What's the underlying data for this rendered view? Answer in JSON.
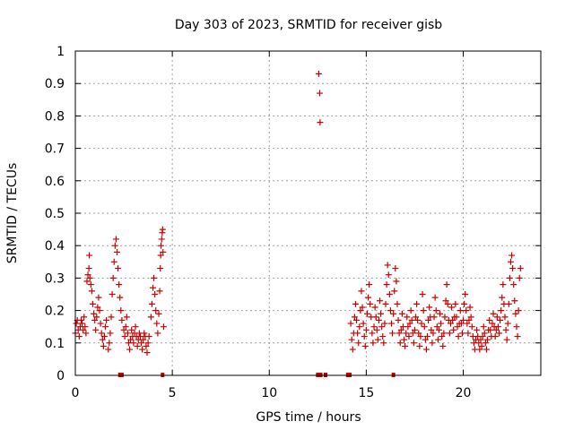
{
  "chart_data": {
    "type": "scatter",
    "title": "Day 303 of 2023, SRMTID for receiver gisb",
    "xlabel": "GPS time / hours",
    "ylabel": "SRMTID / TECUs",
    "xlim": [
      0,
      24
    ],
    "ylim": [
      0,
      1
    ],
    "xticks": [
      0,
      5,
      10,
      15,
      20
    ],
    "xtick_labels": [
      "0",
      "5",
      "10",
      "15",
      "20"
    ],
    "yticks": [
      0,
      0.1,
      0.2,
      0.3,
      0.4,
      0.5,
      0.6,
      0.7,
      0.8,
      0.9,
      1
    ],
    "ytick_labels": [
      "0",
      "0.1",
      "0.2",
      "0.3",
      "0.4",
      "0.5",
      "0.6",
      "0.7",
      "0.8",
      "0.9",
      "1"
    ],
    "grid": true,
    "legend": "none",
    "colors": {
      "marker": "#cc0000",
      "grid": "#a0a0a0",
      "axis": "#000000"
    },
    "series": [
      {
        "name": "SRMTID",
        "marker": "plus",
        "points": [
          [
            0.0,
            0.13
          ],
          [
            0.05,
            0.16
          ],
          [
            0.1,
            0.17
          ],
          [
            0.15,
            0.14
          ],
          [
            0.2,
            0.12
          ],
          [
            0.25,
            0.15
          ],
          [
            0.3,
            0.17
          ],
          [
            0.35,
            0.16
          ],
          [
            0.4,
            0.14
          ],
          [
            0.45,
            0.18
          ],
          [
            0.5,
            0.15
          ],
          [
            0.55,
            0.13
          ],
          [
            0.6,
            0.29
          ],
          [
            0.65,
            0.31
          ],
          [
            0.7,
            0.33
          ],
          [
            0.72,
            0.37
          ],
          [
            0.75,
            0.3
          ],
          [
            0.8,
            0.28
          ],
          [
            0.85,
            0.26
          ],
          [
            0.9,
            0.22
          ],
          [
            0.95,
            0.19
          ],
          [
            1.0,
            0.17
          ],
          [
            1.05,
            0.14
          ],
          [
            1.1,
            0.18
          ],
          [
            1.15,
            0.21
          ],
          [
            1.2,
            0.24
          ],
          [
            1.25,
            0.2
          ],
          [
            1.3,
            0.16
          ],
          [
            1.35,
            0.13
          ],
          [
            1.4,
            0.11
          ],
          [
            1.45,
            0.09
          ],
          [
            1.5,
            0.12
          ],
          [
            1.55,
            0.15
          ],
          [
            1.6,
            0.17
          ],
          [
            1.7,
            0.08
          ],
          [
            1.75,
            0.1
          ],
          [
            1.8,
            0.13
          ],
          [
            1.85,
            0.18
          ],
          [
            1.9,
            0.25
          ],
          [
            1.95,
            0.3
          ],
          [
            2.0,
            0.35
          ],
          [
            2.05,
            0.4
          ],
          [
            2.1,
            0.42
          ],
          [
            2.15,
            0.38
          ],
          [
            2.2,
            0.33
          ],
          [
            2.25,
            0.28
          ],
          [
            2.3,
            0.24
          ],
          [
            2.35,
            0.2
          ],
          [
            2.4,
            0.17
          ],
          [
            2.5,
            0.14
          ],
          [
            2.55,
            0.12
          ],
          [
            2.6,
            0.15
          ],
          [
            2.65,
            0.18
          ],
          [
            2.7,
            0.13
          ],
          [
            2.75,
            0.1
          ],
          [
            2.8,
            0.08
          ],
          [
            2.85,
            0.11
          ],
          [
            2.9,
            0.14
          ],
          [
            2.95,
            0.12
          ],
          [
            3.0,
            0.1
          ],
          [
            3.05,
            0.13
          ],
          [
            3.1,
            0.15
          ],
          [
            3.15,
            0.12
          ],
          [
            3.2,
            0.09
          ],
          [
            3.25,
            0.11
          ],
          [
            3.3,
            0.13
          ],
          [
            3.35,
            0.12
          ],
          [
            3.4,
            0.1
          ],
          [
            3.45,
            0.08
          ],
          [
            3.5,
            0.11
          ],
          [
            3.55,
            0.13
          ],
          [
            3.6,
            0.12
          ],
          [
            3.65,
            0.09
          ],
          [
            3.7,
            0.07
          ],
          [
            3.75,
            0.1
          ],
          [
            3.8,
            0.12
          ],
          [
            3.9,
            0.18
          ],
          [
            3.95,
            0.22
          ],
          [
            4.0,
            0.27
          ],
          [
            4.05,
            0.3
          ],
          [
            4.1,
            0.25
          ],
          [
            4.15,
            0.2
          ],
          [
            4.2,
            0.16
          ],
          [
            4.25,
            0.13
          ],
          [
            4.3,
            0.19
          ],
          [
            4.35,
            0.26
          ],
          [
            4.38,
            0.33
          ],
          [
            4.4,
            0.37
          ],
          [
            4.42,
            0.4
          ],
          [
            4.45,
            0.42
          ],
          [
            4.48,
            0.44
          ],
          [
            4.5,
            0.45
          ],
          [
            4.52,
            0.38
          ],
          [
            4.55,
            0.15
          ],
          [
            12.55,
            0.93
          ],
          [
            12.6,
            0.87
          ],
          [
            12.62,
            0.78
          ],
          [
            14.2,
            0.16
          ],
          [
            14.25,
            0.11
          ],
          [
            14.3,
            0.08
          ],
          [
            14.35,
            0.13
          ],
          [
            14.4,
            0.18
          ],
          [
            14.45,
            0.22
          ],
          [
            14.5,
            0.17
          ],
          [
            14.55,
            0.13
          ],
          [
            14.6,
            0.1
          ],
          [
            14.65,
            0.15
          ],
          [
            14.7,
            0.2
          ],
          [
            14.75,
            0.26
          ],
          [
            14.8,
            0.21
          ],
          [
            14.85,
            0.16
          ],
          [
            14.9,
            0.12
          ],
          [
            14.95,
            0.09
          ],
          [
            15.0,
            0.14
          ],
          [
            15.05,
            0.19
          ],
          [
            15.1,
            0.24
          ],
          [
            15.15,
            0.28
          ],
          [
            15.2,
            0.22
          ],
          [
            15.25,
            0.18
          ],
          [
            15.3,
            0.13
          ],
          [
            15.35,
            0.1
          ],
          [
            15.4,
            0.15
          ],
          [
            15.45,
            0.21
          ],
          [
            15.5,
            0.18
          ],
          [
            15.55,
            0.14
          ],
          [
            15.6,
            0.11
          ],
          [
            15.65,
            0.17
          ],
          [
            15.7,
            0.23
          ],
          [
            15.75,
            0.19
          ],
          [
            15.8,
            0.15
          ],
          [
            15.85,
            0.12
          ],
          [
            15.9,
            0.1
          ],
          [
            15.95,
            0.16
          ],
          [
            16.0,
            0.22
          ],
          [
            16.05,
            0.28
          ],
          [
            16.1,
            0.34
          ],
          [
            16.15,
            0.31
          ],
          [
            16.2,
            0.25
          ],
          [
            16.25,
            0.2
          ],
          [
            16.3,
            0.16
          ],
          [
            16.35,
            0.13
          ],
          [
            16.4,
            0.19
          ],
          [
            16.45,
            0.26
          ],
          [
            16.5,
            0.33
          ],
          [
            16.55,
            0.29
          ],
          [
            16.6,
            0.22
          ],
          [
            16.65,
            0.17
          ],
          [
            16.7,
            0.13
          ],
          [
            16.75,
            0.1
          ],
          [
            16.8,
            0.14
          ],
          [
            16.85,
            0.19
          ],
          [
            16.9,
            0.15
          ],
          [
            16.95,
            0.11
          ],
          [
            17.0,
            0.09
          ],
          [
            17.05,
            0.13
          ],
          [
            17.1,
            0.18
          ],
          [
            17.15,
            0.15
          ],
          [
            17.2,
            0.12
          ],
          [
            17.25,
            0.16
          ],
          [
            17.3,
            0.2
          ],
          [
            17.35,
            0.17
          ],
          [
            17.4,
            0.13
          ],
          [
            17.45,
            0.1
          ],
          [
            17.5,
            0.14
          ],
          [
            17.55,
            0.18
          ],
          [
            17.6,
            0.22
          ],
          [
            17.65,
            0.17
          ],
          [
            17.7,
            0.13
          ],
          [
            17.75,
            0.09
          ],
          [
            17.8,
            0.12
          ],
          [
            17.85,
            0.16
          ],
          [
            17.9,
            0.25
          ],
          [
            17.95,
            0.2
          ],
          [
            18.0,
            0.15
          ],
          [
            18.05,
            0.11
          ],
          [
            18.1,
            0.08
          ],
          [
            18.15,
            0.12
          ],
          [
            18.2,
            0.17
          ],
          [
            18.25,
            0.21
          ],
          [
            18.3,
            0.18
          ],
          [
            18.35,
            0.14
          ],
          [
            18.4,
            0.1
          ],
          [
            18.45,
            0.13
          ],
          [
            18.5,
            0.18
          ],
          [
            18.55,
            0.24
          ],
          [
            18.6,
            0.2
          ],
          [
            18.65,
            0.15
          ],
          [
            18.7,
            0.11
          ],
          [
            18.75,
            0.14
          ],
          [
            18.8,
            0.19
          ],
          [
            18.85,
            0.16
          ],
          [
            18.9,
            0.12
          ],
          [
            18.95,
            0.09
          ],
          [
            19.0,
            0.13
          ],
          [
            19.05,
            0.18
          ],
          [
            19.1,
            0.23
          ],
          [
            19.15,
            0.28
          ],
          [
            19.2,
            0.22
          ],
          [
            19.25,
            0.17
          ],
          [
            19.3,
            0.13
          ],
          [
            19.35,
            0.16
          ],
          [
            19.4,
            0.21
          ],
          [
            19.45,
            0.17
          ],
          [
            19.5,
            0.14
          ],
          [
            19.55,
            0.18
          ],
          [
            19.6,
            0.22
          ],
          [
            19.65,
            0.18
          ],
          [
            19.7,
            0.15
          ],
          [
            19.75,
            0.12
          ],
          [
            19.8,
            0.16
          ],
          [
            19.85,
            0.2
          ],
          [
            19.9,
            0.16
          ],
          [
            19.95,
            0.13
          ],
          [
            20.0,
            0.17
          ],
          [
            20.05,
            0.22
          ],
          [
            20.1,
            0.25
          ],
          [
            20.15,
            0.2
          ],
          [
            20.2,
            0.16
          ],
          [
            20.25,
            0.13
          ],
          [
            20.3,
            0.17
          ],
          [
            20.35,
            0.21
          ],
          [
            20.4,
            0.18
          ],
          [
            20.45,
            0.15
          ],
          [
            20.5,
            0.12
          ],
          [
            20.55,
            0.1
          ],
          [
            20.6,
            0.08
          ],
          [
            20.65,
            0.11
          ],
          [
            20.7,
            0.14
          ],
          [
            20.75,
            0.12
          ],
          [
            20.8,
            0.1
          ],
          [
            20.85,
            0.08
          ],
          [
            20.9,
            0.11
          ],
          [
            20.95,
            0.09
          ],
          [
            21.0,
            0.12
          ],
          [
            21.05,
            0.15
          ],
          [
            21.1,
            0.13
          ],
          [
            21.15,
            0.1
          ],
          [
            21.2,
            0.08
          ],
          [
            21.25,
            0.11
          ],
          [
            21.3,
            0.14
          ],
          [
            21.35,
            0.17
          ],
          [
            21.4,
            0.14
          ],
          [
            21.45,
            0.12
          ],
          [
            21.5,
            0.16
          ],
          [
            21.55,
            0.19
          ],
          [
            21.6,
            0.15
          ],
          [
            21.65,
            0.12
          ],
          [
            21.7,
            0.14
          ],
          [
            21.75,
            0.18
          ],
          [
            21.8,
            0.15
          ],
          [
            21.85,
            0.13
          ],
          [
            21.9,
            0.17
          ],
          [
            21.95,
            0.2
          ],
          [
            22.0,
            0.24
          ],
          [
            22.05,
            0.28
          ],
          [
            22.1,
            0.22
          ],
          [
            22.15,
            0.18
          ],
          [
            22.2,
            0.14
          ],
          [
            22.25,
            0.11
          ],
          [
            22.3,
            0.16
          ],
          [
            22.35,
            0.22
          ],
          [
            22.4,
            0.3
          ],
          [
            22.45,
            0.35
          ],
          [
            22.5,
            0.37
          ],
          [
            22.55,
            0.33
          ],
          [
            22.6,
            0.28
          ],
          [
            22.65,
            0.23
          ],
          [
            22.7,
            0.19
          ],
          [
            22.75,
            0.15
          ],
          [
            22.8,
            0.12
          ],
          [
            22.85,
            0.2
          ],
          [
            22.9,
            0.3
          ],
          [
            22.95,
            0.33
          ]
        ]
      }
    ],
    "zero_markers": [
      2.3,
      2.4,
      4.5,
      12.5,
      12.65,
      12.9,
      14.05,
      14.15,
      16.4
    ]
  }
}
